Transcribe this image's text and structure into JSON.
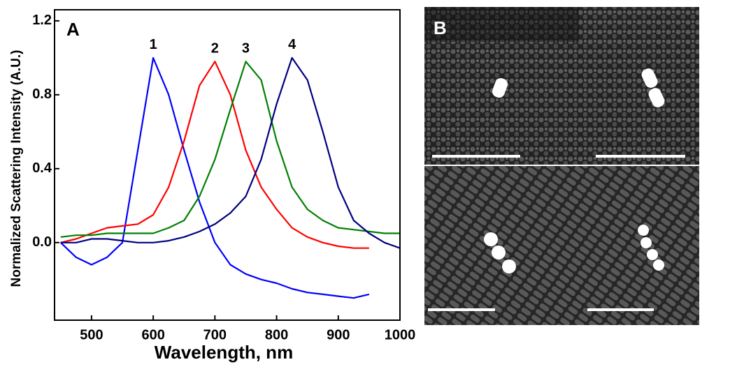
{
  "chart_data": {
    "type": "line",
    "panel_label": "A",
    "x_label": "Wavelength, nm",
    "y_label": "Normalized Scattering Intensity (A.U.)",
    "x": [
      450,
      475,
      500,
      525,
      550,
      575,
      600,
      625,
      650,
      675,
      700,
      725,
      750,
      775,
      800,
      825,
      850,
      875,
      900,
      925,
      950,
      975,
      1000
    ],
    "series": [
      {
        "name": "1",
        "color": "#0000ff",
        "values": [
          0.0,
          -0.08,
          -0.12,
          -0.08,
          0.0,
          0.5,
          1.0,
          0.8,
          0.5,
          0.22,
          0.0,
          -0.12,
          -0.17,
          -0.2,
          -0.22,
          -0.25,
          -0.27,
          -0.28,
          -0.29,
          -0.3,
          -0.28,
          null,
          null
        ]
      },
      {
        "name": "2",
        "color": "#ff0000",
        "values": [
          0.0,
          0.02,
          0.05,
          0.08,
          0.09,
          0.1,
          0.15,
          0.3,
          0.55,
          0.85,
          0.98,
          0.8,
          0.5,
          0.3,
          0.18,
          0.08,
          0.03,
          0.0,
          -0.02,
          -0.03,
          -0.03,
          null,
          null
        ]
      },
      {
        "name": "3",
        "color": "#008000",
        "values": [
          0.03,
          0.04,
          0.04,
          0.05,
          0.05,
          0.05,
          0.05,
          0.08,
          0.12,
          0.25,
          0.45,
          0.72,
          0.98,
          0.88,
          0.55,
          0.3,
          0.18,
          0.12,
          0.08,
          0.07,
          0.06,
          0.05,
          0.05
        ]
      },
      {
        "name": "4",
        "color": "#000080",
        "values": [
          0.0,
          0.0,
          0.02,
          0.02,
          0.01,
          0.0,
          0.0,
          0.01,
          0.03,
          0.06,
          0.1,
          0.16,
          0.25,
          0.45,
          0.75,
          1.0,
          0.88,
          0.6,
          0.3,
          0.12,
          0.05,
          0.0,
          -0.03
        ]
      }
    ],
    "xlim": [
      440,
      1000
    ],
    "ylim": [
      -0.42,
      1.26
    ],
    "xticks": [
      500,
      600,
      700,
      800,
      900,
      1000
    ],
    "yticks": [
      {
        "value": 0,
        "label": "0.0"
      },
      0.4,
      0.8,
      1.2
    ],
    "grid": false
  },
  "panel_b": {
    "label": "B"
  }
}
